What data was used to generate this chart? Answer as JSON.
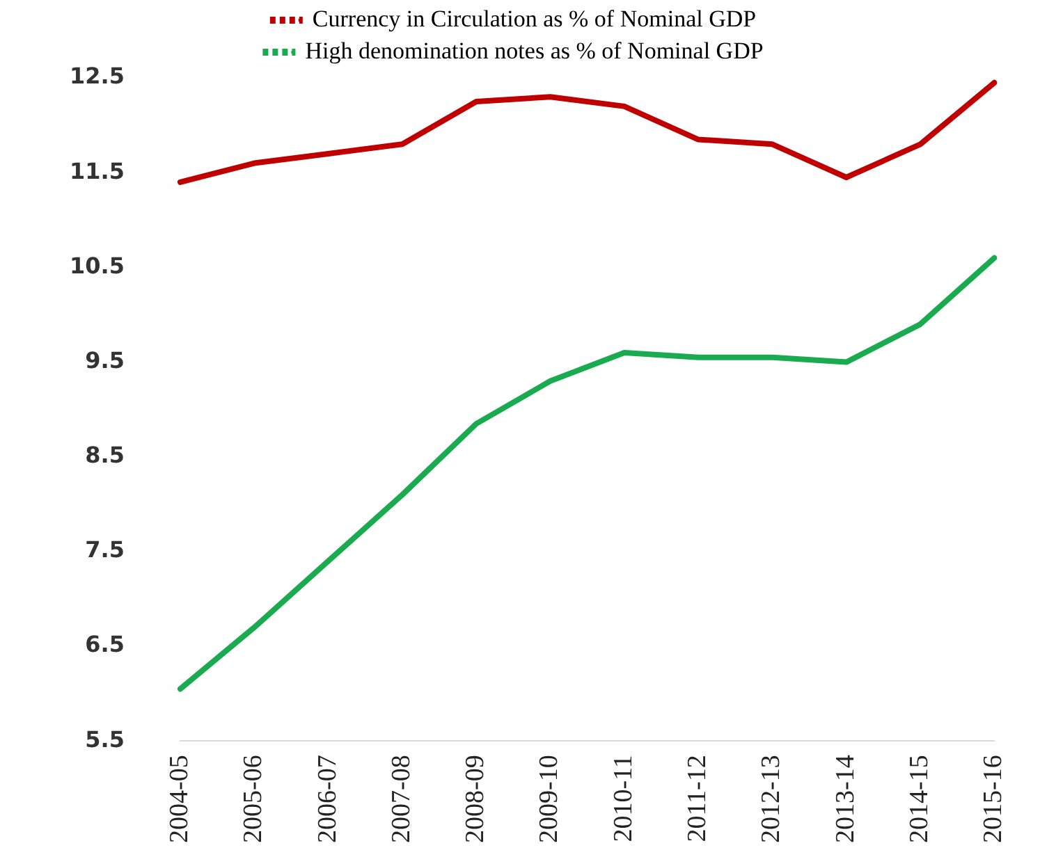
{
  "chart_data": {
    "type": "line",
    "categories": [
      "2004-05",
      "2005-06",
      "2006-07",
      "2007-08",
      "2008-09",
      "2009-10",
      "2010-11",
      "2011-12",
      "2012-13",
      "2013-14",
      "2014-15",
      "2015-16"
    ],
    "series": [
      {
        "name": "Currency in Circulation as % of Nominal GDP",
        "color": "#c00000",
        "values": [
          11.4,
          11.6,
          11.7,
          11.8,
          12.25,
          12.3,
          12.2,
          11.85,
          11.8,
          11.45,
          11.8,
          12.45
        ]
      },
      {
        "name": "High denomination notes as % of Nominal GDP",
        "color": "#1aaa50",
        "values": [
          6.05,
          6.7,
          7.4,
          8.1,
          8.85,
          9.3,
          9.6,
          9.55,
          9.55,
          9.5,
          9.9,
          10.6
        ]
      }
    ],
    "ylim": [
      5.5,
      12.5
    ],
    "yticks": [
      5.5,
      6.5,
      7.5,
      8.5,
      9.5,
      10.5,
      11.5,
      12.5
    ],
    "grid": false,
    "legend": "top",
    "marker": "none",
    "line_style": "solid"
  }
}
